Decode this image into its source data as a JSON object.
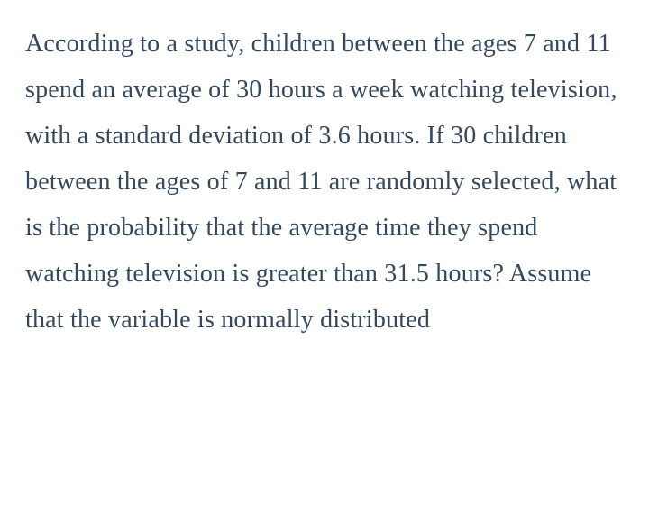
{
  "problem": {
    "text": "According to a study, children between the ages 7 and 11 spend an average of 30 hours a week watching television, with a standard deviation of 3.6 hours. If 30 children between the ages of 7 and 11 are randomly selected, what is the probability that the average time they spend watching television is greater than 31.5 hours? Assume that the variable is normally distributed",
    "text_color": "#34495e",
    "background_color": "#ffffff",
    "font_size": 28,
    "line_height": 1.82
  }
}
